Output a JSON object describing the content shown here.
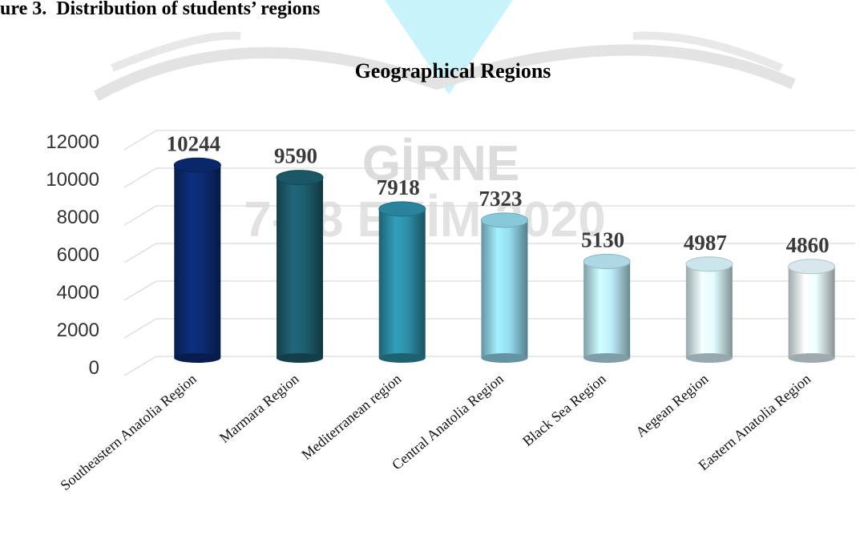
{
  "caption": "ure 3.  Distribution of students’ regions",
  "watermark": [
    "GİRNE",
    "7-18 EKİM 2020"
  ],
  "chart_data": {
    "type": "bar",
    "title": "Geographical Regions",
    "categories": [
      "Southeastern Anatolia Region",
      "Marmara Region",
      "Mediterranean region",
      "Central Anatolia Region",
      "Black Sea Region",
      "Aegean Region",
      "Eastern Anatolia Region"
    ],
    "values": [
      10244,
      9590,
      7918,
      7323,
      5130,
      4987,
      4860
    ],
    "colors": [
      "#0b2a6e",
      "#1c5a6a",
      "#2b8aa2",
      "#8fd2e6",
      "#b5e2ef",
      "#d6f1f8",
      "#e2f3f7"
    ],
    "ylim": [
      0,
      12000
    ],
    "yticks": [
      0,
      2000,
      4000,
      6000,
      8000,
      10000,
      12000
    ],
    "grid": true
  }
}
